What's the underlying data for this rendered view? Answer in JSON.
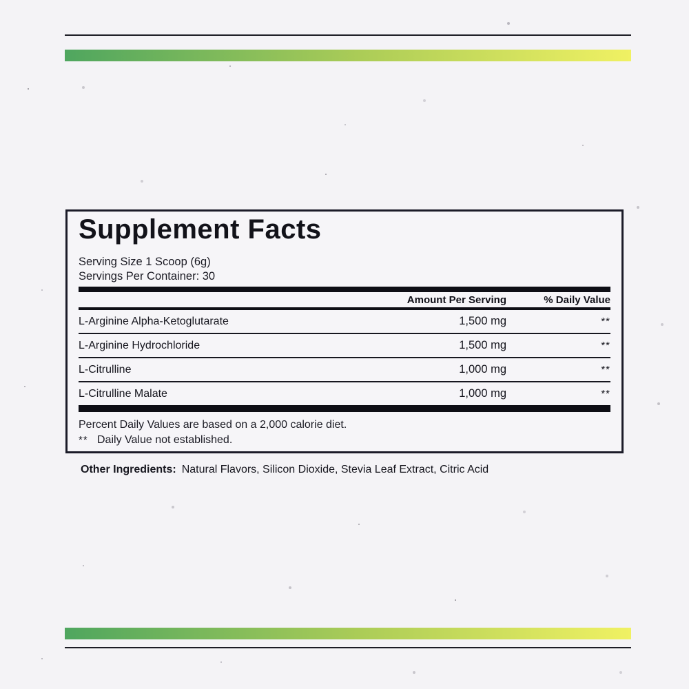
{
  "accents": {
    "gradient_start": "#4fa65f",
    "gradient_mid": "#abcc57",
    "gradient_end": "#f0f163",
    "ink": "#15151d"
  },
  "panel": {
    "title": "Supplement Facts",
    "serving_size": "Serving Size 1 Scoop (6g)",
    "servings_per_container": "Servings Per Container: 30",
    "columns": {
      "amount": "Amount Per Serving",
      "daily_value": "% Daily Value"
    },
    "rows": [
      {
        "name": "L-Arginine Alpha-Ketoglutarate",
        "amount": "1,500 mg",
        "daily_value": "**"
      },
      {
        "name": "L-Arginine Hydrochloride",
        "amount": "1,500 mg",
        "daily_value": "**"
      },
      {
        "name": "L-Citrulline",
        "amount": "1,000 mg",
        "daily_value": "**"
      },
      {
        "name": "L-Citrulline Malate",
        "amount": "1,000 mg",
        "daily_value": "**"
      }
    ],
    "footnote_calorie": "Percent Daily Values are based on a 2,000 calorie diet.",
    "footnote_dv_marker": "**",
    "footnote_dv_text": "Daily Value not established."
  },
  "other_ingredients": {
    "label": "Other Ingredients:",
    "value": "Natural Flavors, Silicon Dioxide, Stevia Leaf Extract, Citric Acid"
  }
}
